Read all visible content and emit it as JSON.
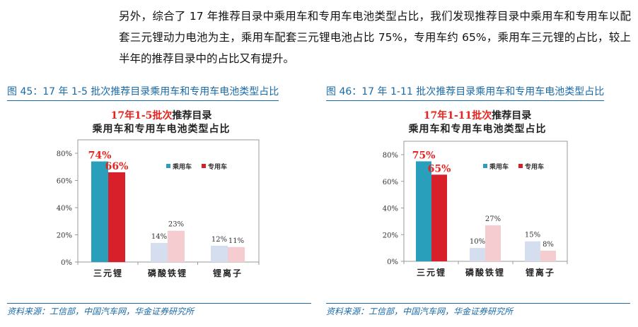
{
  "paragraph": "另外，综合了 17 年推荐目录中乘用车和专用车电池类型占比，我们发现推荐目录中乘用车和专用车以配套三元锂动力电池为主，乘用车配套三元锂电池占比 75%，专用车约 65%，乘用车三元锂的占比，较上半年的推荐目录中的占比又有提升。",
  "figures": [
    {
      "caption": "图 45：17 年 1-5 批次推荐目录乘用车和专用车电池类型占比",
      "source": "资料来源：工信部，中国汽车网，华金证券研究所"
    },
    {
      "caption": "图 46：17 年 1-11 批次推荐目录乘用车和专用车电池类型占比",
      "source": "资料来源：工信部，中国汽车网，华金证券研究所"
    }
  ],
  "colors": {
    "accent": "#1a6aa8",
    "passenger_main": "#2a9fbc",
    "special_main": "#d7202a",
    "passenger_light": "#d4deee",
    "special_light": "#f5cdd0",
    "title_red": "#e8231f"
  },
  "chart_data": [
    {
      "type": "bar",
      "title_red": "17年1-5批次",
      "title_rest": "推荐目录",
      "title_line2": "乘用车和专用车电池类型占比",
      "categories": [
        "三元锂",
        "磷酸铁锂",
        "锂离子"
      ],
      "series": [
        {
          "name": "乘用车",
          "values": [
            74,
            14,
            12
          ]
        },
        {
          "name": "专用车",
          "values": [
            66,
            23,
            11
          ]
        }
      ],
      "data_labels": [
        [
          "74%",
          "14%",
          "12%"
        ],
        [
          "66%",
          "23%",
          "11%"
        ]
      ],
      "yticks": [
        "0%",
        "20%",
        "40%",
        "60%",
        "80%"
      ],
      "ylim": [
        0,
        80
      ],
      "legend": "top-right",
      "grid": false
    },
    {
      "type": "bar",
      "title_red": "17年1-11批次",
      "title_rest": "推荐目录",
      "title_line2": "乘用车和专用车电池类型占比",
      "categories": [
        "三元锂",
        "磷酸铁锂",
        "锂离子"
      ],
      "series": [
        {
          "name": "乘用车",
          "values": [
            75,
            10,
            15
          ]
        },
        {
          "name": "专用车",
          "values": [
            65,
            27,
            8
          ]
        }
      ],
      "data_labels": [
        [
          "75%",
          "10%",
          "15%"
        ],
        [
          "65%",
          "27%",
          "8%"
        ]
      ],
      "yticks": [
        "0%",
        "20%",
        "40%",
        "60%",
        "80%"
      ],
      "ylim": [
        0,
        80
      ],
      "legend": "top-right",
      "grid": false
    }
  ]
}
